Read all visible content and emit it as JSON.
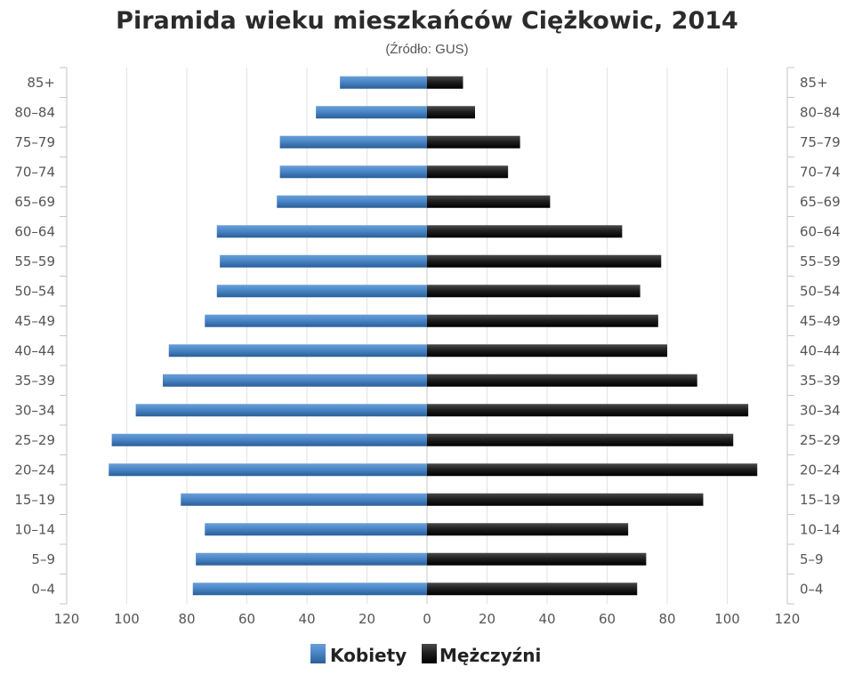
{
  "chart_data": {
    "type": "bar",
    "orientation": "horizontal",
    "title": "Piramida wieku mieszkańców Ciężkowic, 2014",
    "subtitle": "(Źródło: GUS)",
    "categories": [
      "0-4",
      "5-9",
      "10-14",
      "15-19",
      "20-24",
      "25-29",
      "30-34",
      "35-39",
      "40-44",
      "45-49",
      "50-54",
      "55-59",
      "60-64",
      "65-69",
      "70-74",
      "75-79",
      "80-84",
      "85+"
    ],
    "series": [
      {
        "name": "Kobiety",
        "color": "#3b78b8",
        "values": [
          78,
          77,
          74,
          82,
          106,
          105,
          97,
          88,
          86,
          74,
          70,
          69,
          70,
          50,
          49,
          49,
          37,
          29
        ]
      },
      {
        "name": "Mężczyźni",
        "color": "#1c1c1c",
        "values": [
          70,
          73,
          67,
          92,
          110,
          102,
          107,
          90,
          80,
          77,
          71,
          78,
          65,
          41,
          27,
          31,
          16,
          12
        ]
      }
    ],
    "xlim": [
      -120,
      120
    ],
    "xticks": [
      "120",
      "100",
      "80",
      "60",
      "40",
      "20",
      "0",
      "20",
      "40",
      "60",
      "80",
      "100",
      "120"
    ],
    "grid": true,
    "legend_position": "bottom"
  }
}
